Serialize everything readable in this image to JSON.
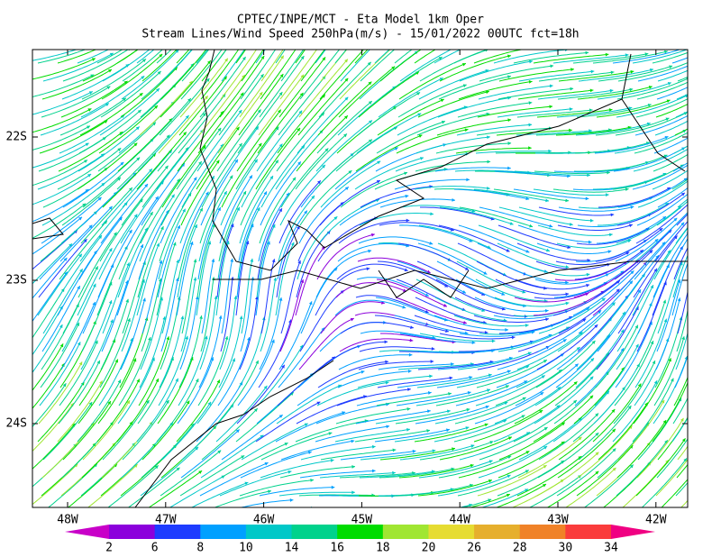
{
  "header": {
    "title": "CPTEC/INPE/MCT -  Eta Model 1km Oper",
    "subtitle": "Stream Lines/Wind Speed 250hPa(m/s) - 15/01/2022 00UTC fct=18h"
  },
  "map": {
    "lat_labels": [
      "22S",
      "23S",
      "24S"
    ],
    "lon_labels": [
      "48W",
      "47W",
      "46W",
      "45W",
      "44W",
      "43W",
      "42W"
    ]
  },
  "colorbar": {
    "labels": [
      "2",
      "6",
      "8",
      "10",
      "14",
      "16",
      "18",
      "20",
      "26",
      "28",
      "30",
      "34"
    ],
    "colors": [
      "#c800c8",
      "#8c00dc",
      "#1e3cff",
      "#00a0ff",
      "#00c8c8",
      "#00d28c",
      "#00dc00",
      "#a0e632",
      "#e6dc32",
      "#e6af2d",
      "#f08228",
      "#fa3c3c",
      "#f00082"
    ]
  }
}
